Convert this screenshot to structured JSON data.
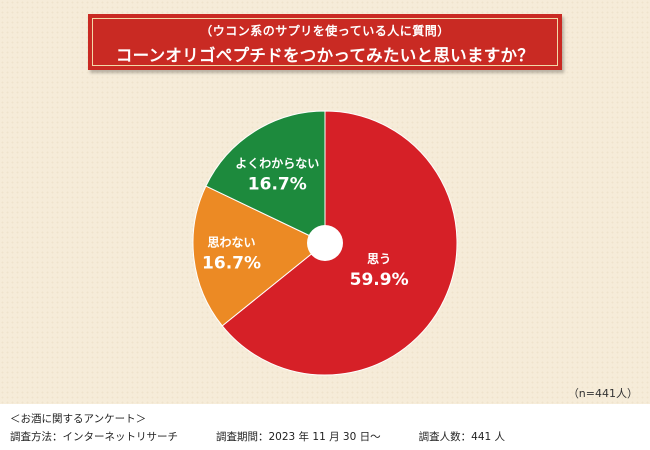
{
  "header": {
    "subtitle": "（ウコン系のサプリを使っている人に質問）",
    "title": "コーンオリゴペプチドをつかってみたいと思いますか？"
  },
  "chart_data": {
    "type": "pie",
    "donut": true,
    "slices": [
      {
        "label": "思う",
        "value": 59.9,
        "value_text": "59.9%",
        "color": "#d62027"
      },
      {
        "label": "思わない",
        "value": 16.7,
        "value_text": "16.7%",
        "color": "#ec8a24"
      },
      {
        "label": "よくわからない",
        "value": 16.7,
        "value_text": "16.7%",
        "color": "#1d8a3d"
      }
    ]
  },
  "sample_note": "（n=441人）",
  "footer": {
    "survey_name": "＜お酒に関するアンケート＞",
    "method": "調査方法：インターネットリサーチ",
    "period": "調査期間：2023 年 11 月 30 日〜",
    "count": "調査人数：441 人"
  }
}
